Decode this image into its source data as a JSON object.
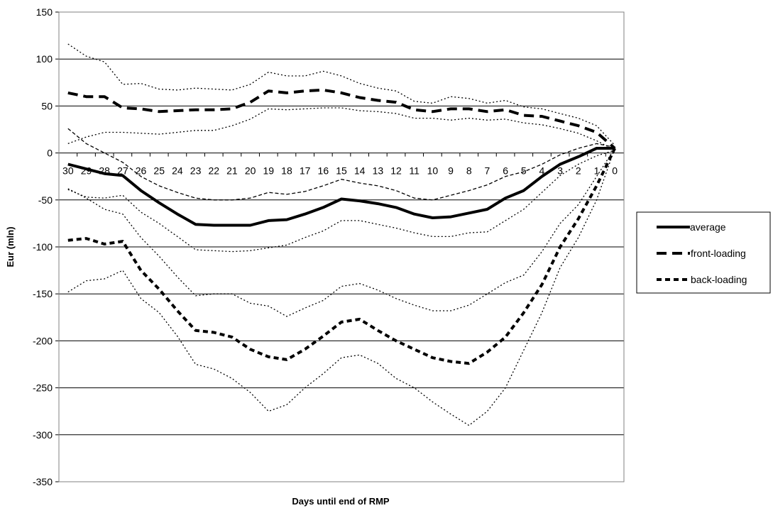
{
  "chart_data": {
    "type": "line",
    "title": "",
    "xlabel": "Days until end of RMP",
    "ylabel": "Eur (mln)",
    "ylim": [
      -350,
      150
    ],
    "yticks": [
      150,
      100,
      50,
      0,
      -50,
      -100,
      -150,
      -200,
      -250,
      -300,
      -350
    ],
    "ytick_labels": [
      "150",
      "100",
      "50",
      "0",
      "-50",
      "-100",
      "-150",
      "-200",
      "-250",
      "-300",
      "-350"
    ],
    "categories": [
      "30",
      "29",
      "28",
      "27",
      "26",
      "25",
      "24",
      "23",
      "22",
      "21",
      "20",
      "19",
      "18",
      "17",
      "16",
      "15",
      "14",
      "13",
      "12",
      "11",
      "10",
      "9",
      "8",
      "7",
      "6",
      "5",
      "4",
      "3",
      "2",
      "1",
      "0"
    ],
    "x_tick_position": "at zero line",
    "grid": "horizontal",
    "legend_position": "right",
    "series": [
      {
        "name": "average",
        "style": "solid",
        "color": "#000000",
        "values": [
          -12,
          -17,
          -22,
          -24,
          -40,
          -53,
          -65,
          -76,
          -77,
          -77,
          -77,
          -72,
          -71,
          -65,
          -58,
          -49,
          -51,
          -54,
          -58,
          -65,
          -69,
          -68,
          -64,
          -60,
          -48,
          -40,
          -25,
          -12,
          -4,
          5,
          5
        ]
      },
      {
        "name": "front-loading",
        "style": "long-dash",
        "color": "#000000",
        "values": [
          64,
          60,
          60,
          48,
          47,
          44,
          45,
          46,
          46,
          47,
          54,
          66,
          64,
          66,
          67,
          64,
          59,
          56,
          54,
          46,
          44,
          47,
          47,
          44,
          46,
          40,
          39,
          34,
          29,
          22,
          5
        ]
      },
      {
        "name": "back-loading",
        "style": "short-dash",
        "color": "#000000",
        "values": [
          -93,
          -91,
          -97,
          -94,
          -125,
          -145,
          -168,
          -189,
          -191,
          -196,
          -209,
          -217,
          -220,
          -209,
          -195,
          -180,
          -177,
          -189,
          -200,
          -209,
          -218,
          -222,
          -224,
          -212,
          -196,
          -170,
          -140,
          -100,
          -70,
          -35,
          5
        ]
      }
    ],
    "bands": [
      {
        "style": "dotted",
        "color": "#000000",
        "values": [
          116,
          103,
          97,
          73,
          74,
          68,
          67,
          69,
          68,
          67,
          73,
          86,
          82,
          82,
          87,
          82,
          74,
          69,
          66,
          55,
          53,
          60,
          58,
          53,
          56,
          49,
          47,
          42,
          37,
          29,
          8
        ]
      },
      {
        "style": "dotted",
        "color": "#000000",
        "values": [
          10,
          17,
          22,
          22,
          21,
          20,
          22,
          24,
          24,
          29,
          36,
          47,
          46,
          47,
          48,
          48,
          45,
          44,
          42,
          37,
          37,
          35,
          37,
          35,
          36,
          32,
          30,
          26,
          21,
          13,
          3
        ]
      },
      {
        "style": "thin-dashed",
        "color": "#000000",
        "values": [
          26,
          10,
          0,
          -10,
          -25,
          -35,
          -42,
          -48,
          -50,
          -50,
          -48,
          -42,
          -44,
          -41,
          -35,
          -28,
          -32,
          -35,
          -40,
          -48,
          -50,
          -45,
          -40,
          -34,
          -25,
          -20,
          -12,
          -2,
          5,
          10,
          6
        ]
      },
      {
        "style": "dotted",
        "color": "#000000",
        "values": [
          -39,
          -47,
          -48,
          -45,
          -63,
          -75,
          -89,
          -103,
          -104,
          -105,
          -104,
          -101,
          -98,
          -90,
          -83,
          -72,
          -72,
          -76,
          -80,
          -85,
          -89,
          -89,
          -85,
          -84,
          -72,
          -60,
          -42,
          -24,
          -12,
          -3,
          3
        ]
      },
      {
        "style": "dotted",
        "color": "#000000",
        "values": [
          -38,
          -48,
          -60,
          -65,
          -90,
          -110,
          -132,
          -152,
          -150,
          -150,
          -160,
          -163,
          -174,
          -165,
          -157,
          -142,
          -139,
          -146,
          -155,
          -162,
          -168,
          -168,
          -162,
          -150,
          -138,
          -130,
          -105,
          -75,
          -55,
          -25,
          5
        ]
      },
      {
        "style": "dotted",
        "color": "#000000",
        "values": [
          -148,
          -136,
          -134,
          -125,
          -155,
          -170,
          -195,
          -225,
          -230,
          -240,
          -255,
          -275,
          -268,
          -250,
          -235,
          -218,
          -215,
          -224,
          -240,
          -250,
          -265,
          -278,
          -290,
          -275,
          -250,
          -210,
          -170,
          -122,
          -90,
          -50,
          5
        ]
      }
    ]
  }
}
